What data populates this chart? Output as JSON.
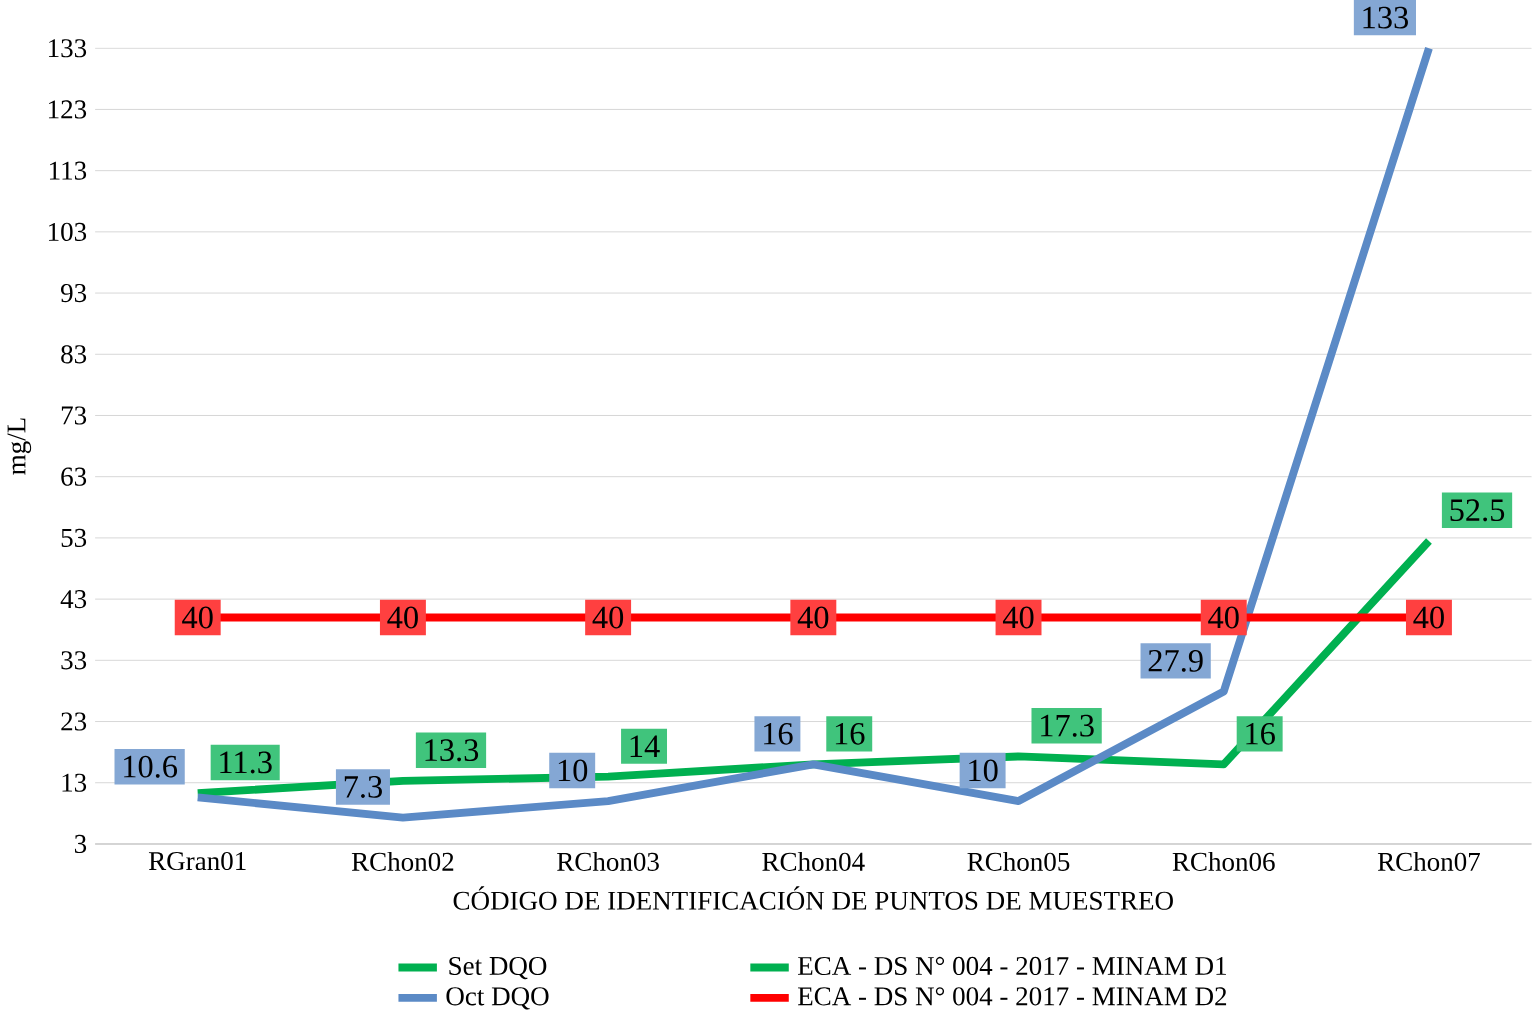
{
  "chart_data": {
    "type": "line",
    "xlabel": "CÓDIGO DE IDENTIFICACIÓN DE PUNTOS DE MUESTREO",
    "ylabel": "mg/L",
    "categories": [
      "RGran01",
      "RChon02",
      "RChon03",
      "RChon04",
      "RChon05",
      "RChon06",
      "RChon07"
    ],
    "series": [
      {
        "name": "Set DQO",
        "color": "#00b050",
        "values": [
          11.3,
          13.3,
          14,
          16,
          17.3,
          16,
          52.5
        ]
      },
      {
        "name": "Oct DQO",
        "color": "#5b8ac6",
        "values": [
          10.6,
          7.3,
          10,
          16,
          10,
          27.9,
          133
        ]
      },
      {
        "name": "ECA - DS N° 004 - 2017 - MINAM D1",
        "color": "#00b050",
        "values": [
          null,
          null,
          null,
          null,
          null,
          null,
          null
        ]
      },
      {
        "name": "ECA - DS N° 004 - 2017 - MINAM D2",
        "color": "#ff0000",
        "values": [
          40,
          40,
          40,
          40,
          40,
          40,
          40
        ]
      }
    ],
    "ylim": [
      3,
      133
    ],
    "yticks": [
      3,
      13,
      23,
      33,
      43,
      53,
      63,
      73,
      83,
      93,
      103,
      113,
      123,
      133
    ],
    "grid": "y",
    "legend": "bottom",
    "marker": "none",
    "line_style": "solid",
    "data_labels": true
  }
}
